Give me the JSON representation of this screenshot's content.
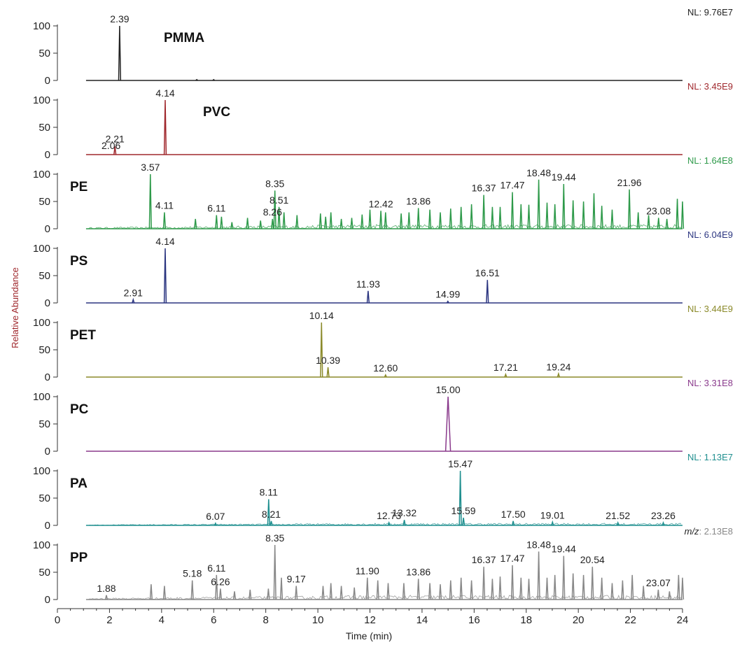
{
  "chart_data": {
    "type": "line",
    "xlabel": "Time (min)",
    "ylabel": "Relative Abundance",
    "xlim": [
      0,
      24
    ],
    "ylim": [
      0,
      100
    ],
    "x_ticks": [
      "0",
      "2",
      "4",
      "6",
      "8",
      "10",
      "12",
      "14",
      "16",
      "18",
      "20",
      "22",
      "24"
    ],
    "y_ticks": [
      "0",
      "50",
      "100"
    ],
    "panels": [
      {
        "name": "PMMA",
        "nl": "NL: 9.76E7",
        "color": "#222222",
        "label_pos": "top-center",
        "peaks": [
          [
            2.39,
            100
          ],
          [
            5.35,
            1.5
          ],
          [
            6.0,
            1.5
          ]
        ],
        "labels": [
          {
            "text": "2.39",
            "t": 2.39,
            "y": 100
          }
        ]
      },
      {
        "name": "PVC",
        "nl": "NL: 3.45E9",
        "color": "#a0282d",
        "label_pos": "top-center",
        "peaks": [
          [
            2.21,
            15
          ],
          [
            4.14,
            100
          ]
        ],
        "labels": [
          {
            "text": "2.06",
            "t": 2.06,
            "y": 4
          },
          {
            "text": "2.21",
            "t": 2.21,
            "y": 16
          },
          {
            "text": "4.14",
            "t": 4.14,
            "y": 100
          }
        ]
      },
      {
        "name": "PE",
        "nl": "NL: 1.64E8",
        "color": "#2e9a4a",
        "label_pos": "top-left",
        "peaks": [
          [
            3.57,
            100
          ],
          [
            4.11,
            30
          ],
          [
            5.3,
            18
          ],
          [
            6.11,
            25
          ],
          [
            6.3,
            22
          ],
          [
            6.7,
            12
          ],
          [
            7.3,
            20
          ],
          [
            7.8,
            15
          ],
          [
            8.26,
            18
          ],
          [
            8.35,
            70
          ],
          [
            8.51,
            40
          ],
          [
            8.7,
            30
          ],
          [
            9.2,
            25
          ],
          [
            10.1,
            28
          ],
          [
            10.3,
            22
          ],
          [
            10.5,
            30
          ],
          [
            10.9,
            18
          ],
          [
            11.3,
            20
          ],
          [
            11.7,
            26
          ],
          [
            12.0,
            35
          ],
          [
            12.42,
            33
          ],
          [
            12.6,
            30
          ],
          [
            13.2,
            28
          ],
          [
            13.5,
            30
          ],
          [
            13.86,
            38
          ],
          [
            14.3,
            35
          ],
          [
            14.7,
            30
          ],
          [
            15.1,
            37
          ],
          [
            15.5,
            40
          ],
          [
            15.9,
            45
          ],
          [
            16.37,
            62
          ],
          [
            16.7,
            40
          ],
          [
            17.0,
            40
          ],
          [
            17.47,
            67
          ],
          [
            17.8,
            45
          ],
          [
            18.1,
            44
          ],
          [
            18.48,
            90
          ],
          [
            18.8,
            48
          ],
          [
            19.1,
            45
          ],
          [
            19.44,
            82
          ],
          [
            19.8,
            52
          ],
          [
            20.2,
            50
          ],
          [
            20.6,
            65
          ],
          [
            20.9,
            42
          ],
          [
            21.3,
            35
          ],
          [
            21.96,
            72
          ],
          [
            22.3,
            30
          ],
          [
            22.7,
            25
          ],
          [
            23.08,
            20
          ],
          [
            23.4,
            18
          ],
          [
            23.8,
            55
          ],
          [
            24.0,
            50
          ]
        ],
        "labels": [
          {
            "text": "3.57",
            "t": 3.57,
            "y": 100
          },
          {
            "text": "4.11",
            "t": 4.11,
            "y": 30
          },
          {
            "text": "6.11",
            "t": 6.11,
            "y": 25
          },
          {
            "text": "8.26",
            "t": 8.26,
            "y": 18
          },
          {
            "text": "8.35",
            "t": 8.35,
            "y": 70
          },
          {
            "text": "8.51",
            "t": 8.51,
            "y": 40
          },
          {
            "text": "12.42",
            "t": 12.42,
            "y": 33
          },
          {
            "text": "13.86",
            "t": 13.86,
            "y": 38
          },
          {
            "text": "16.37",
            "t": 16.37,
            "y": 62
          },
          {
            "text": "17.47",
            "t": 17.47,
            "y": 67
          },
          {
            "text": "18.48",
            "t": 18.48,
            "y": 90
          },
          {
            "text": "19.44",
            "t": 19.44,
            "y": 82
          },
          {
            "text": "21.96",
            "t": 21.96,
            "y": 72
          },
          {
            "text": "23.08",
            "t": 23.08,
            "y": 20
          }
        ]
      },
      {
        "name": "PS",
        "nl": "NL: 6.04E9",
        "color": "#2b3580",
        "label_pos": "top-left",
        "peaks": [
          [
            2.91,
            6
          ],
          [
            4.14,
            100
          ],
          [
            11.93,
            22
          ],
          [
            14.99,
            3
          ],
          [
            16.51,
            42
          ]
        ],
        "labels": [
          {
            "text": "2.91",
            "t": 2.91,
            "y": 6
          },
          {
            "text": "4.14",
            "t": 4.14,
            "y": 100
          },
          {
            "text": "11.93",
            "t": 11.93,
            "y": 22
          },
          {
            "text": "14.99",
            "t": 14.99,
            "y": 3
          },
          {
            "text": "16.51",
            "t": 16.51,
            "y": 42
          }
        ]
      },
      {
        "name": "PET",
        "nl": "NL: 3.44E9",
        "color": "#8b8a2a",
        "label_pos": "top-left",
        "peaks": [
          [
            10.14,
            100
          ],
          [
            10.39,
            18
          ],
          [
            12.6,
            4
          ],
          [
            17.21,
            5
          ],
          [
            19.24,
            6
          ]
        ],
        "labels": [
          {
            "text": "10.14",
            "t": 10.14,
            "y": 100
          },
          {
            "text": "10.39",
            "t": 10.39,
            "y": 18
          },
          {
            "text": "12.60",
            "t": 12.6,
            "y": 4
          },
          {
            "text": "17.21",
            "t": 17.21,
            "y": 5
          },
          {
            "text": "19.24",
            "t": 19.24,
            "y": 6
          }
        ]
      },
      {
        "name": "PC",
        "nl": "NL: 3.31E8",
        "color": "#8a3a8c",
        "label_pos": "top-left",
        "peaks": [
          [
            15.0,
            100
          ]
        ],
        "labels": [
          {
            "text": "15.00",
            "t": 15.0,
            "y": 100
          }
        ]
      },
      {
        "name": "PA",
        "nl": "NL: 1.13E7",
        "color": "#1f8f8f",
        "label_pos": "top-left",
        "peaks": [
          [
            6.07,
            4
          ],
          [
            8.11,
            48
          ],
          [
            8.21,
            8
          ],
          [
            12.73,
            5
          ],
          [
            13.32,
            10
          ],
          [
            15.47,
            100
          ],
          [
            15.59,
            14
          ],
          [
            17.5,
            8
          ],
          [
            19.01,
            6
          ],
          [
            21.52,
            5
          ],
          [
            23.26,
            5
          ]
        ],
        "labels": [
          {
            "text": "6.07",
            "t": 6.07,
            "y": 4
          },
          {
            "text": "8.11",
            "t": 8.11,
            "y": 48
          },
          {
            "text": "8.21",
            "t": 8.21,
            "y": 8
          },
          {
            "text": "12.73",
            "t": 12.73,
            "y": 5
          },
          {
            "text": "13.32",
            "t": 13.32,
            "y": 10
          },
          {
            "text": "15.47",
            "t": 15.47,
            "y": 100
          },
          {
            "text": "15.59",
            "t": 15.59,
            "y": 14
          },
          {
            "text": "17.50",
            "t": 17.5,
            "y": 8
          },
          {
            "text": "19.01",
            "t": 19.01,
            "y": 6
          },
          {
            "text": "21.52",
            "t": 21.52,
            "y": 5
          },
          {
            "text": "23.26",
            "t": 23.26,
            "y": 5
          }
        ]
      },
      {
        "name": "PP",
        "nl_prefix": "m/z",
        "nl_value": ": 2.13E8",
        "color": "#888888",
        "label_pos": "top-left",
        "peaks": [
          [
            1.88,
            8
          ],
          [
            3.6,
            28
          ],
          [
            4.11,
            25
          ],
          [
            5.18,
            35
          ],
          [
            6.11,
            45
          ],
          [
            6.26,
            20
          ],
          [
            6.8,
            15
          ],
          [
            7.4,
            18
          ],
          [
            8.1,
            20
          ],
          [
            8.35,
            100
          ],
          [
            8.6,
            40
          ],
          [
            9.17,
            25
          ],
          [
            10.2,
            25
          ],
          [
            10.5,
            30
          ],
          [
            10.9,
            25
          ],
          [
            11.4,
            22
          ],
          [
            11.9,
            40
          ],
          [
            12.3,
            35
          ],
          [
            12.7,
            30
          ],
          [
            13.3,
            30
          ],
          [
            13.86,
            38
          ],
          [
            14.3,
            30
          ],
          [
            14.7,
            28
          ],
          [
            15.1,
            35
          ],
          [
            15.5,
            40
          ],
          [
            15.9,
            35
          ],
          [
            16.37,
            60
          ],
          [
            16.7,
            38
          ],
          [
            17.0,
            42
          ],
          [
            17.47,
            63
          ],
          [
            17.8,
            40
          ],
          [
            18.1,
            38
          ],
          [
            18.48,
            88
          ],
          [
            18.8,
            40
          ],
          [
            19.1,
            45
          ],
          [
            19.44,
            80
          ],
          [
            19.8,
            48
          ],
          [
            20.2,
            45
          ],
          [
            20.54,
            60
          ],
          [
            20.9,
            40
          ],
          [
            21.3,
            30
          ],
          [
            21.7,
            35
          ],
          [
            22.07,
            45
          ],
          [
            22.5,
            25
          ],
          [
            23.07,
            18
          ],
          [
            23.5,
            15
          ],
          [
            23.85,
            45
          ],
          [
            24.0,
            40
          ]
        ],
        "labels": [
          {
            "text": "1.88",
            "t": 1.88,
            "y": 8
          },
          {
            "text": "5.18",
            "t": 5.18,
            "y": 35
          },
          {
            "text": "6.11",
            "t": 6.11,
            "y": 45
          },
          {
            "text": "6.26",
            "t": 6.26,
            "y": 20
          },
          {
            "text": "8.35",
            "t": 8.35,
            "y": 100
          },
          {
            "text": "9.17",
            "t": 9.17,
            "y": 25
          },
          {
            "text": "11.90",
            "t": 11.9,
            "y": 40
          },
          {
            "text": "13.86",
            "t": 13.86,
            "y": 38
          },
          {
            "text": "16.37",
            "t": 16.37,
            "y": 60
          },
          {
            "text": "17.47",
            "t": 17.47,
            "y": 63
          },
          {
            "text": "18.48",
            "t": 18.48,
            "y": 88
          },
          {
            "text": "19.44",
            "t": 19.44,
            "y": 80
          },
          {
            "text": "20.54",
            "t": 20.54,
            "y": 60
          },
          {
            "text": "23.07",
            "t": 23.07,
            "y": 18
          }
        ]
      }
    ]
  }
}
